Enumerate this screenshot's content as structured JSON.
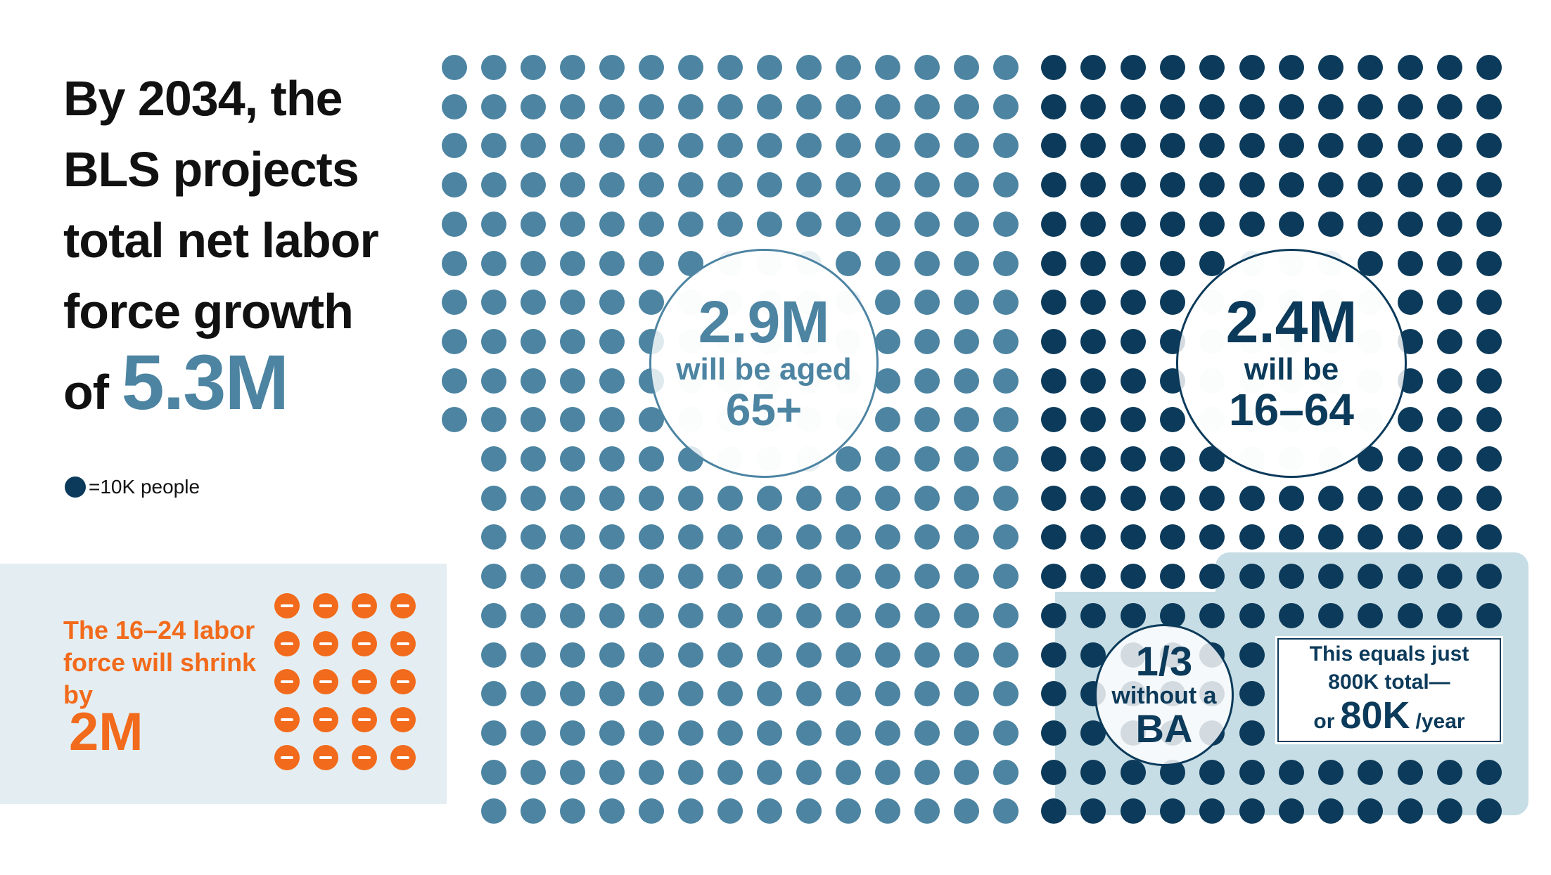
{
  "headline": {
    "lines": [
      "By 2034, the",
      "BLS projects",
      "total net labor",
      "force growth"
    ],
    "prefix": "of",
    "total": "5.3M"
  },
  "legend": {
    "label": "=10K people",
    "color": "#0c3a5a"
  },
  "colors": {
    "older_dots": "#4c84a2",
    "prime_dots": "#0c3a5a",
    "faded_dots": "#e8f0f4",
    "shrink": "#f26a1b",
    "highlight": "#c6dde5"
  },
  "shrink": {
    "text": "The 16–24 labor force will shrink by",
    "value": "2M"
  },
  "callouts": {
    "older": {
      "value": "2.9M",
      "label": "will be aged",
      "sub": "65+"
    },
    "prime": {
      "value": "2.4M",
      "label": "will be",
      "sub": "16–64"
    },
    "no_ba": {
      "value": "1/3",
      "label": "without a",
      "sub": "BA"
    }
  },
  "equals": {
    "line1": "This equals just",
    "line2": "800K total—",
    "prefix": "or",
    "big": "80K",
    "suffix": "/year"
  },
  "chart_data": {
    "type": "unit-dot",
    "unit": "10K people",
    "title": "By 2034, the BLS projects total net labor force growth of 5.3M",
    "series": [
      {
        "name": "will be aged 65+",
        "value_millions": 2.9,
        "dots": 290
      },
      {
        "name": "will be 16–64",
        "value_millions": 2.4,
        "dots": 240
      },
      {
        "name": "The 16–24 labor force will shrink by",
        "value_millions": -2.0,
        "dots": 20,
        "dot_unit": "100K people"
      }
    ],
    "annotations": [
      "1/3 without a BA",
      "This equals just 800K total— or 80K /year"
    ]
  }
}
